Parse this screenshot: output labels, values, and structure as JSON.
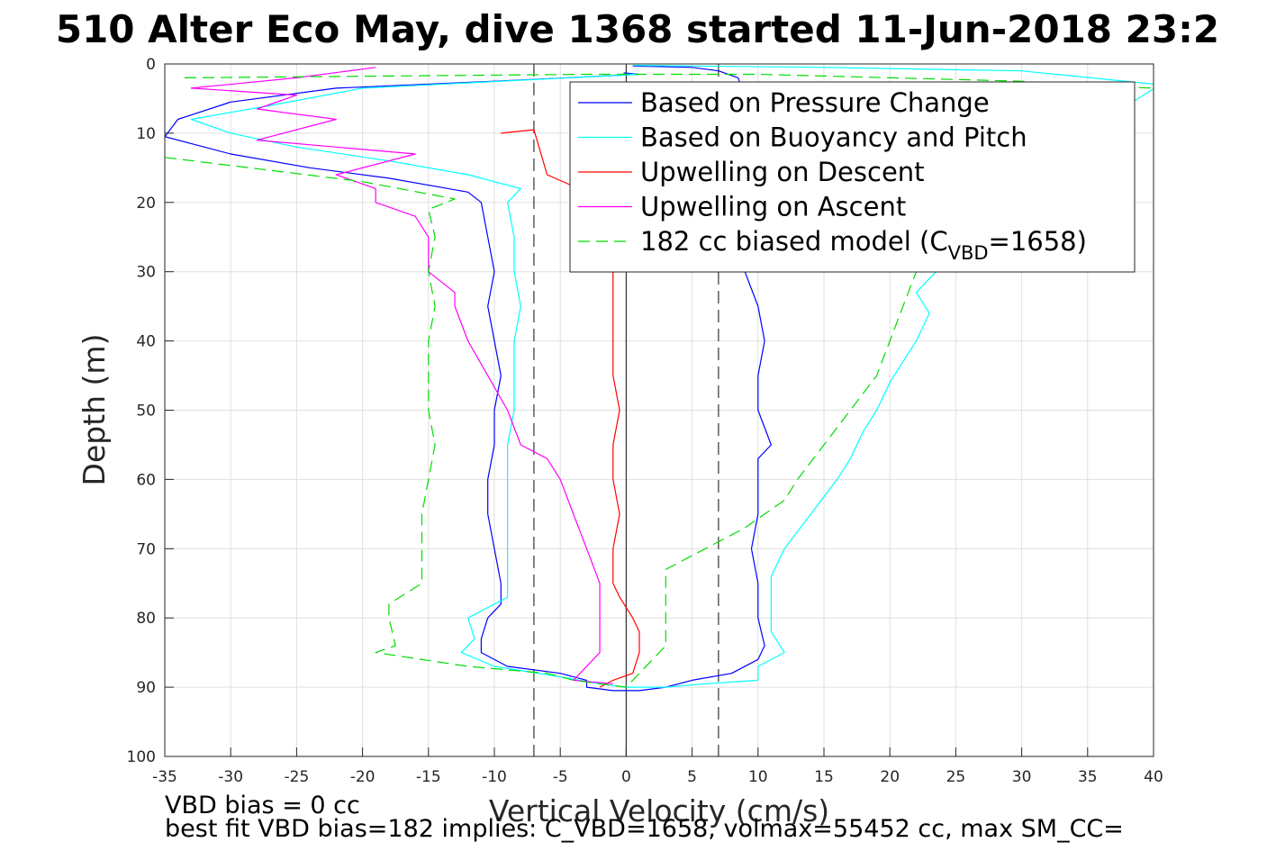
{
  "chart_data": {
    "type": "line",
    "title": "510 Alter Eco May, dive 1368 started 11-Jun-2018 23:2",
    "xlabel": "Vertical Velocity (cm/s)",
    "ylabel": "Depth (m)",
    "xlim": [
      -35,
      40
    ],
    "ylim": [
      0,
      100
    ],
    "y_reversed": true,
    "grid": true,
    "legend_position": "top-right",
    "x_ticks": [
      "-35",
      "-30",
      "-25",
      "-20",
      "-15",
      "-10",
      "-5",
      "0",
      "5",
      "10",
      "15",
      "20",
      "25",
      "30",
      "35",
      "40"
    ],
    "y_ticks": [
      "0",
      "10",
      "20",
      "30",
      "40",
      "50",
      "60",
      "70",
      "80",
      "90",
      "100"
    ],
    "reference_lines": [
      {
        "x": -7,
        "style": "dashed"
      },
      {
        "x": 0,
        "style": "solid"
      },
      {
        "x": 7,
        "style": "dashed"
      }
    ],
    "legend": {
      "entries": [
        {
          "label": "Based on Pressure Change",
          "color": "#0000ff",
          "dash": "solid"
        },
        {
          "label": "Based on Buoyancy and Pitch",
          "color": "#00ffff",
          "dash": "solid"
        },
        {
          "label": "Upwelling on Descent",
          "color": "#ff0000",
          "dash": "solid"
        },
        {
          "label": "Upwelling on Ascent",
          "color": "#ff00ff",
          "dash": "solid"
        },
        {
          "label_prefix": "182 cc biased model (C",
          "label_sub": "VBD",
          "label_suffix": "=1658)",
          "color": "#00dd00",
          "dash": "dashed"
        }
      ]
    },
    "series": [
      {
        "name": "Based on Pressure Change",
        "color": "#0000ff",
        "dash": "solid",
        "segments": [
          [
            [
              -0.2,
              1.3
            ],
            [
              1,
              1.5
            ],
            [
              -10,
              2.5
            ],
            [
              -22,
              3.5
            ],
            [
              -30,
              5.5
            ],
            [
              -34,
              8
            ],
            [
              -35,
              10.5
            ],
            [
              -30,
              13
            ],
            [
              -24,
              15
            ],
            [
              -18,
              16.5
            ],
            [
              -12,
              18.5
            ],
            [
              -11,
              20
            ],
            [
              -10.5,
              25
            ],
            [
              -10,
              30
            ],
            [
              -10.5,
              35
            ],
            [
              -10,
              40
            ],
            [
              -9.5,
              45
            ],
            [
              -10,
              50
            ],
            [
              -10,
              55
            ],
            [
              -10.5,
              60
            ],
            [
              -10.5,
              65
            ],
            [
              -10,
              70
            ],
            [
              -9.5,
              75
            ],
            [
              -9.5,
              78
            ],
            [
              -10.5,
              80
            ],
            [
              -11,
              83
            ],
            [
              -11,
              85
            ],
            [
              -9,
              87
            ],
            [
              -5,
              88
            ],
            [
              -3,
              89
            ],
            [
              -3,
              90
            ],
            [
              -1,
              90.5
            ],
            [
              1,
              90.5
            ],
            [
              3,
              90
            ],
            [
              5,
              89
            ],
            [
              8,
              88
            ],
            [
              10,
              86
            ],
            [
              10.5,
              84
            ],
            [
              10,
              80
            ],
            [
              10,
              75
            ],
            [
              9.5,
              70
            ],
            [
              10,
              65
            ],
            [
              10,
              60
            ],
            [
              10,
              57
            ],
            [
              11,
              55
            ],
            [
              10,
              50
            ],
            [
              10,
              45
            ],
            [
              10.5,
              40
            ],
            [
              10,
              35
            ],
            [
              9,
              30
            ],
            [
              9,
              20
            ],
            [
              9,
              15
            ],
            [
              9,
              10
            ],
            [
              9,
              5
            ],
            [
              8.5,
              2
            ],
            [
              7,
              1
            ],
            [
              5,
              0.5
            ],
            [
              0.5,
              0.3
            ]
          ]
        ]
      },
      {
        "name": "Based on Buoyancy and Pitch",
        "color": "#00ffff",
        "dash": "solid",
        "segments": [
          [
            [
              -0.2,
              1.5
            ],
            [
              1,
              1.5
            ],
            [
              -20,
              3.5
            ],
            [
              -27,
              6
            ],
            [
              -33,
              8
            ],
            [
              -30,
              10
            ],
            [
              -25,
              12
            ],
            [
              -18,
              14
            ],
            [
              -12,
              16
            ],
            [
              -8,
              18
            ],
            [
              -9,
              20
            ],
            [
              -8.5,
              25
            ],
            [
              -8.5,
              30
            ],
            [
              -8,
              35
            ],
            [
              -8.5,
              40
            ],
            [
              -8.5,
              45
            ],
            [
              -8.5,
              50
            ],
            [
              -9,
              55
            ],
            [
              -9,
              60
            ],
            [
              -9,
              65
            ],
            [
              -9,
              70
            ],
            [
              -9,
              75
            ],
            [
              -9,
              77
            ],
            [
              -12,
              80
            ],
            [
              -11.5,
              83
            ],
            [
              -12.5,
              85
            ],
            [
              -10,
              87
            ],
            [
              -5,
              88.5
            ],
            [
              -2,
              89.5
            ],
            [
              0,
              90
            ],
            [
              3,
              90
            ],
            [
              6,
              89.5
            ],
            [
              10,
              89
            ],
            [
              10,
              87
            ],
            [
              12,
              85
            ],
            [
              11,
              82
            ],
            [
              11,
              78
            ],
            [
              11,
              74
            ],
            [
              12,
              70
            ],
            [
              14,
              65
            ],
            [
              16,
              60
            ],
            [
              17,
              57
            ],
            [
              18,
              53
            ],
            [
              19,
              50
            ],
            [
              20,
              46
            ],
            [
              21,
              43
            ],
            [
              22,
              40
            ],
            [
              23,
              36
            ],
            [
              22,
              33
            ],
            [
              23,
              31
            ],
            [
              24,
              29
            ],
            [
              30,
              22
            ],
            [
              32,
              18
            ],
            [
              34,
              12
            ],
            [
              38,
              6
            ],
            [
              40.5,
              3
            ],
            [
              30,
              1
            ],
            [
              15,
              0.5
            ],
            [
              5,
              0.3
            ],
            [
              0.5,
              0.2
            ]
          ]
        ]
      },
      {
        "name": "Upwelling on Descent",
        "color": "#ff0000",
        "dash": "solid",
        "segments": [
          [
            [
              -9.5,
              10
            ],
            [
              -7,
              9.5
            ],
            [
              -6,
              16
            ],
            [
              -3,
              18.5
            ],
            [
              -2,
              20
            ],
            [
              -1,
              25
            ],
            [
              -1,
              30
            ],
            [
              -1,
              35
            ],
            [
              -1,
              40
            ],
            [
              -1,
              45
            ],
            [
              -0.5,
              50
            ],
            [
              -1,
              55
            ],
            [
              -1,
              60
            ],
            [
              -0.5,
              65
            ],
            [
              -1,
              70
            ],
            [
              -1,
              75
            ],
            [
              -0.5,
              77
            ],
            [
              0.5,
              80
            ],
            [
              1,
              82
            ],
            [
              1,
              85
            ],
            [
              0.5,
              88
            ],
            [
              -1,
              89
            ],
            [
              -2,
              90
            ]
          ]
        ]
      },
      {
        "name": "Upwelling on Ascent",
        "color": "#ff00ff",
        "dash": "solid",
        "segments": [
          [
            [
              -19,
              0.5
            ],
            [
              -25,
              2
            ],
            [
              -33,
              3.5
            ],
            [
              -25,
              4.5
            ],
            [
              -28,
              6.5
            ],
            [
              -22,
              8
            ],
            [
              -28,
              11
            ],
            [
              -16,
              13
            ],
            [
              -22,
              16
            ],
            [
              -19,
              18
            ],
            [
              -19,
              20
            ],
            [
              -16,
              22
            ],
            [
              -15,
              25
            ],
            [
              -15,
              30
            ],
            [
              -13,
              33
            ],
            [
              -13,
              35
            ],
            [
              -12,
              40
            ],
            [
              -10.5,
              45
            ],
            [
              -9,
              50
            ],
            [
              -8,
              55
            ],
            [
              -6,
              57
            ],
            [
              -5,
              60
            ],
            [
              -4,
              65
            ],
            [
              -3,
              70
            ],
            [
              -2,
              75
            ],
            [
              -2,
              80
            ],
            [
              -2,
              85
            ],
            [
              -4,
              89
            ],
            [
              -1,
              89.5
            ]
          ]
        ]
      },
      {
        "name": "182 cc biased model (C_VBD=1658)",
        "color": "#00dd00",
        "dash": "dashed",
        "segments": [
          [
            [
              -33.5,
              2
            ],
            [
              -3,
              1.5
            ],
            [
              10,
              1.5
            ],
            [
              30,
              2.5
            ],
            [
              34,
              3
            ],
            [
              40,
              3.5
            ]
          ],
          [
            [
              -35,
              13.5
            ],
            [
              -20,
              17
            ],
            [
              -13,
              19.5
            ],
            [
              -15,
              21
            ],
            [
              -14.5,
              25
            ],
            [
              -15,
              30
            ],
            [
              -14.5,
              35
            ],
            [
              -15,
              40
            ],
            [
              -15,
              45
            ],
            [
              -15,
              50
            ],
            [
              -14.5,
              55
            ],
            [
              -15,
              60
            ],
            [
              -15.5,
              65
            ],
            [
              -15.5,
              70
            ],
            [
              -15.5,
              75
            ],
            [
              -18,
              78
            ],
            [
              -18,
              80
            ],
            [
              -17.5,
              84
            ],
            [
              -19,
              85
            ],
            [
              -12,
              87
            ],
            [
              -6,
              88
            ],
            [
              -4,
              89
            ],
            [
              -2,
              89.5
            ],
            [
              0,
              90
            ],
            [
              1,
              88
            ],
            [
              2,
              86
            ],
            [
              3,
              84
            ],
            [
              3,
              80
            ],
            [
              3,
              76
            ],
            [
              3,
              73
            ],
            [
              6,
              70
            ],
            [
              9,
              67
            ],
            [
              12,
              63
            ],
            [
              13,
              60
            ],
            [
              15,
              55
            ],
            [
              17,
              50
            ],
            [
              19,
              45
            ],
            [
              20,
              40
            ],
            [
              21,
              35
            ],
            [
              22,
              30
            ],
            [
              25,
              25
            ],
            [
              28,
              20
            ]
          ]
        ]
      }
    ]
  },
  "footer": {
    "line1": "VBD bias = 0 cc",
    "line2": "best fit VBD bias=182 implies: C_VBD=1658, volmax=55452 cc, max SM_CC="
  },
  "colors": {
    "axis": "#262626",
    "grid": "#dfdfdf",
    "refline": "#333333"
  }
}
